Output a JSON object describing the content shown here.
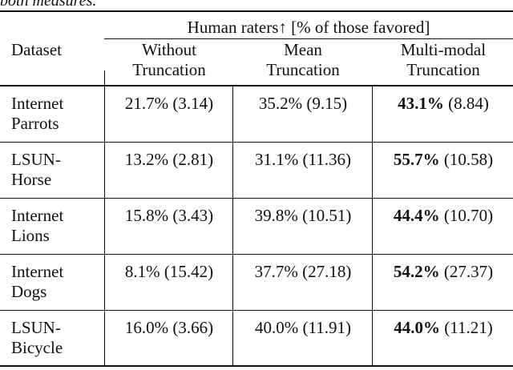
{
  "caption_fragment": "both measures.",
  "header": {
    "group": "Human raters↑ [% of those favored]",
    "dataset": "Dataset",
    "columns": [
      {
        "line1": "Without",
        "line2": "Truncation"
      },
      {
        "line1": "Mean",
        "line2": "Truncation"
      },
      {
        "line1": "Multi-modal",
        "line2": "Truncation"
      }
    ]
  },
  "rows": [
    {
      "dataset1": "Internet",
      "dataset2": "Parrots",
      "cells": [
        {
          "v": "21.7%",
          "sd": "(3.14)"
        },
        {
          "v": "35.2%",
          "sd": "(9.15)"
        },
        {
          "v": "43.1%",
          "sd": "(8.84)"
        }
      ]
    },
    {
      "dataset1": "LSUN-",
      "dataset2": "Horse",
      "cells": [
        {
          "v": "13.2%",
          "sd": "(2.81)"
        },
        {
          "v": "31.1%",
          "sd": "(11.36)"
        },
        {
          "v": "55.7%",
          "sd": "(10.58)"
        }
      ]
    },
    {
      "dataset1": "Internet",
      "dataset2": "Lions",
      "cells": [
        {
          "v": "15.8%",
          "sd": "(3.43)"
        },
        {
          "v": "39.8%",
          "sd": "(10.51)"
        },
        {
          "v": "44.4%",
          "sd": "(10.70)"
        }
      ]
    },
    {
      "dataset1": "Internet",
      "dataset2": "Dogs",
      "cells": [
        {
          "v": "8.1%",
          "sd": "(15.42)"
        },
        {
          "v": "37.7%",
          "sd": "(27.18)"
        },
        {
          "v": "54.2%",
          "sd": "(27.37)"
        }
      ]
    },
    {
      "dataset1": "LSUN-",
      "dataset2": "Bicycle",
      "cells": [
        {
          "v": "16.0%",
          "sd": "(3.66)"
        },
        {
          "v": "40.0%",
          "sd": "(11.91)"
        },
        {
          "v": "44.0%",
          "sd": "(11.21)"
        }
      ]
    }
  ],
  "bold_column": 2
}
